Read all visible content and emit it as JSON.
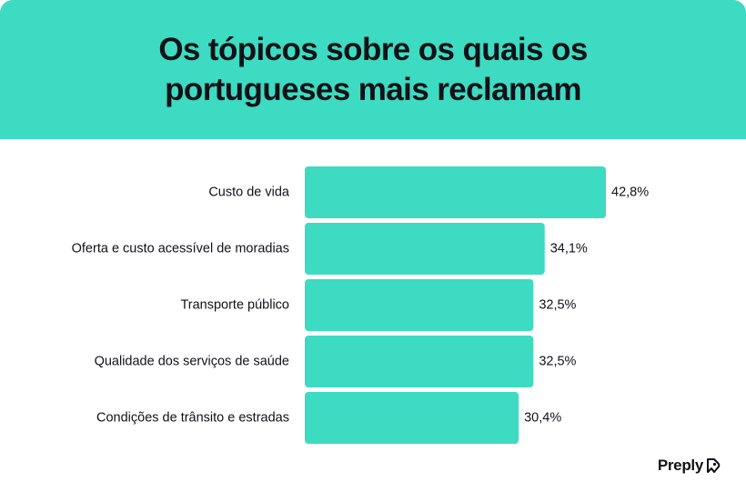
{
  "header": {
    "title_line1": "Os tópicos sobre os quais os",
    "title_line2": "portugueses mais reclamam"
  },
  "chart_data": {
    "type": "bar",
    "orientation": "horizontal",
    "categories": [
      "Custo de vida",
      "Oferta e custo acessível de moradias",
      "Transporte público",
      "Qualidade dos serviços de saúde",
      "Condições de trânsito e estradas"
    ],
    "values": [
      42.8,
      34.1,
      32.5,
      32.5,
      30.4
    ],
    "value_labels": [
      "42,8%",
      "34,1%",
      "32,5%",
      "32,5%",
      "30,4%"
    ],
    "unit": "%",
    "grid": false,
    "legend": "none",
    "bar_color": "#3ddbc1"
  },
  "brand": {
    "name": "Preply",
    "icon": "preply-logo-icon"
  },
  "colors": {
    "accent": "#3ddbc1",
    "text": "#121117",
    "background": "#ffffff"
  }
}
